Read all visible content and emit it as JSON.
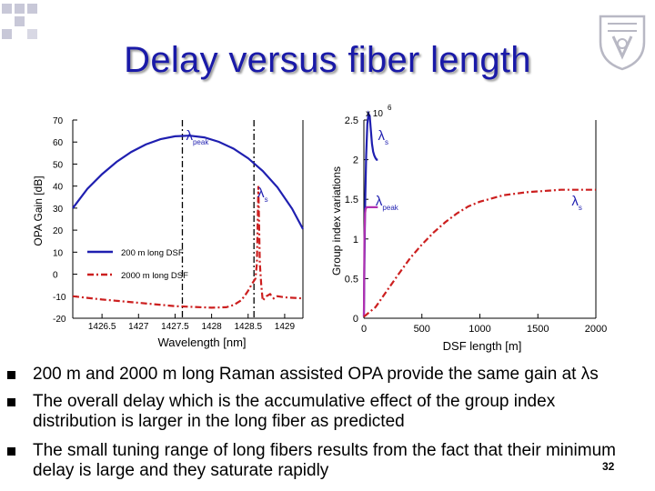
{
  "slide": {
    "title": "Delay versus fiber length",
    "page_number": "32",
    "logo_icon": "technion-emblem-icon"
  },
  "bullets": [
    {
      "lines": [
        " 200 m and  2000 m long Raman assisted OPA provide the same gain at λs"
      ]
    },
    {
      "lines": [
        "The overall delay which is the accumulative effect of the group index",
        "distribution is larger in the long fiber as predicted"
      ]
    },
    {
      "lines": [
        "The small tuning range of long fibers results from the fact that their minimum",
        "delay is large and they saturate rapidly"
      ]
    }
  ],
  "chart_data": [
    {
      "type": "line",
      "xlabel": "Wavelength [nm]",
      "ylabel": "OPA Gain  [dB]",
      "xlim": [
        1426.1,
        1429.25
      ],
      "ylim": [
        -20,
        70
      ],
      "xticks": [
        "1426.5",
        "1427",
        "1427.5",
        "1428",
        "1428.5",
        "1429"
      ],
      "yticks": [
        "70",
        "60",
        "50",
        "40",
        "30",
        "20",
        "10",
        "0",
        "-10",
        "-20"
      ],
      "annotations": [
        {
          "text": "λ",
          "sub": "peak",
          "x": 1427.6,
          "y": 61
        },
        {
          "text": "λ",
          "sub": "s",
          "x": 1428.58,
          "y": 35
        }
      ],
      "legend": [
        {
          "name": "200 m long DSF",
          "color": "#1f1fb0",
          "style": "solid"
        },
        {
          "name": "2000 m long DSF",
          "color": "#cc1f1f",
          "style": "dashdot"
        }
      ],
      "series": [
        {
          "name": "200 m long DSF",
          "color": "#1f1fb0",
          "style": "solid",
          "x": [
            1426.1,
            1426.3,
            1426.5,
            1426.7,
            1426.9,
            1427.1,
            1427.3,
            1427.5,
            1427.7,
            1427.9,
            1428.1,
            1428.3,
            1428.5,
            1428.7,
            1428.9,
            1429.1,
            1429.25
          ],
          "y": [
            30,
            38.8,
            45.4,
            51,
            55.5,
            58.9,
            61.3,
            62.6,
            62.9,
            62.1,
            60.1,
            57,
            52.6,
            46.9,
            39.5,
            29.8,
            20.5
          ]
        },
        {
          "name": "2000 m long DSF",
          "color": "#cc1f1f",
          "style": "dashdot",
          "x": [
            1426.1,
            1426.5,
            1427,
            1427.5,
            1428,
            1428.2,
            1428.3,
            1428.4,
            1428.45,
            1428.5,
            1428.55,
            1428.6,
            1428.62,
            1428.64,
            1428.66,
            1428.68,
            1428.7,
            1428.75,
            1428.8,
            1428.85,
            1428.9,
            1429,
            1429.25
          ],
          "y": [
            -10,
            -11.5,
            -13,
            -14.5,
            -15.2,
            -15,
            -14,
            -12,
            -10,
            -7.5,
            -4.5,
            -2,
            5,
            40,
            5,
            -5,
            -12,
            -10,
            -9,
            -11,
            -10,
            -10.5,
            -11
          ]
        }
      ],
      "vlines": [
        {
          "x": 1427.6,
          "color": "#000000",
          "style": "dashdot"
        },
        {
          "x": 1428.58,
          "color": "#000000",
          "style": "dashdot"
        }
      ],
      "grid": false
    },
    {
      "type": "line",
      "xlabel": "DSF length [m]",
      "ylabel": "Group index variations",
      "xlim": [
        0,
        2000
      ],
      "ylim": [
        0,
        2.5
      ],
      "exponent_label": "x 10",
      "exponent_power": "6",
      "xticks": [
        "0",
        "500",
        "1000",
        "1500",
        "2000"
      ],
      "yticks": [
        "2.5",
        "2",
        "1.5",
        "1",
        "0.5",
        "0"
      ],
      "annotations": [
        {
          "text": "λ",
          "sub": "s",
          "x": 90,
          "y": 2.25
        },
        {
          "text": "λ",
          "sub": "peak",
          "x": 70,
          "y": 1.42
        },
        {
          "text": "λ",
          "sub": "s",
          "x": 1760,
          "y": 1.42
        }
      ],
      "series": [
        {
          "name": "λs 200 m",
          "color": "#1f1fb0",
          "style": "solid",
          "x": [
            0,
            5,
            10,
            20,
            30,
            40,
            50,
            60,
            70,
            80,
            90,
            100,
            110,
            120
          ],
          "y": [
            0.02,
            0.7,
            1.4,
            2.05,
            2.45,
            2.58,
            2.55,
            2.38,
            2.2,
            2.1,
            2.05,
            2.02,
            2.0,
            2.0
          ]
        },
        {
          "name": "λpeak 200 m",
          "color": "#b030b0",
          "style": "solid",
          "x": [
            0,
            5,
            10,
            15,
            25,
            40,
            60,
            80,
            100,
            120
          ],
          "y": [
            0.02,
            1.0,
            1.32,
            1.38,
            1.4,
            1.4,
            1.4,
            1.4,
            1.4,
            1.4
          ]
        },
        {
          "name": "λs 2000 m",
          "color": "#cc1f1f",
          "style": "dashdot",
          "x": [
            0,
            100,
            200,
            300,
            400,
            500,
            600,
            700,
            800,
            900,
            1000,
            1100,
            1200,
            1300,
            1400,
            1500,
            1600,
            1700,
            1800,
            1900,
            2000
          ],
          "y": [
            0.02,
            0.14,
            0.35,
            0.56,
            0.76,
            0.93,
            1.08,
            1.21,
            1.32,
            1.41,
            1.47,
            1.51,
            1.55,
            1.57,
            1.59,
            1.6,
            1.61,
            1.62,
            1.62,
            1.62,
            1.62
          ]
        }
      ],
      "grid": false
    }
  ]
}
